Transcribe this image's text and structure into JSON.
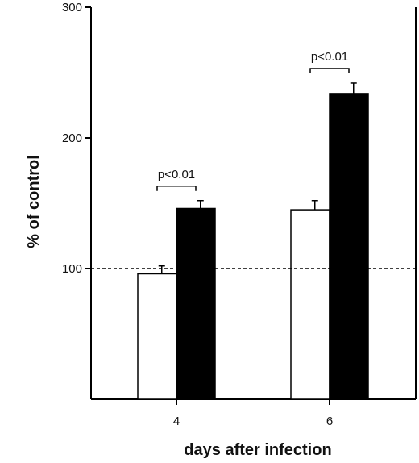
{
  "chart_data": {
    "type": "bar",
    "title": "",
    "xlabel": "days after infection",
    "ylabel": "% of control",
    "categories": [
      "4",
      "6"
    ],
    "ylim": [
      0,
      300
    ],
    "yticks": [
      100,
      200,
      300
    ],
    "reference_line": {
      "value": 100,
      "style": "dashed"
    },
    "series": [
      {
        "fill": "#ffffff",
        "values": [
          96,
          145
        ],
        "errors": [
          6,
          7
        ]
      },
      {
        "fill": "#000000",
        "values": [
          146,
          234
        ],
        "errors": [
          6,
          8
        ]
      }
    ],
    "annotations": [
      {
        "category_index": 0,
        "text": "p<0.01"
      },
      {
        "category_index": 1,
        "text": "p<0.01"
      }
    ],
    "grid": false
  }
}
